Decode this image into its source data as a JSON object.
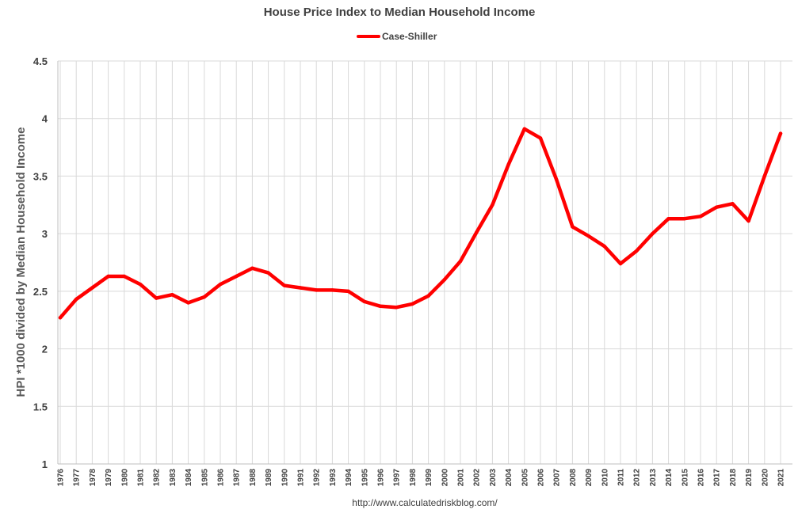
{
  "chart_data": {
    "type": "line",
    "title": "House Price Index to Median Household Income",
    "xlabel": "",
    "ylabel": "HPI *1000 divided by Median Household Income",
    "ylim": [
      1,
      4.5
    ],
    "yticks": [
      "1",
      "1.5",
      "2",
      "2.5",
      "3",
      "3.5",
      "4",
      "4.5"
    ],
    "ytick_values": [
      1,
      1.5,
      2,
      2.5,
      3,
      3.5,
      4,
      4.5
    ],
    "categories": [
      "1976",
      "1977",
      "1978",
      "1979",
      "1980",
      "1981",
      "1982",
      "1983",
      "1984",
      "1985",
      "1986",
      "1987",
      "1988",
      "1989",
      "1990",
      "1991",
      "1992",
      "1993",
      "1994",
      "1995",
      "1996",
      "1997",
      "1998",
      "1999",
      "2000",
      "2001",
      "2002",
      "2003",
      "2004",
      "2005",
      "2006",
      "2007",
      "2008",
      "2009",
      "2010",
      "2011",
      "2012",
      "2013",
      "2014",
      "2015",
      "2016",
      "2017",
      "2018",
      "2019",
      "2020",
      "2021"
    ],
    "series": [
      {
        "name": "Case-Shiller",
        "color": "#ff0000",
        "values": [
          2.27,
          2.43,
          2.53,
          2.63,
          2.63,
          2.56,
          2.44,
          2.47,
          2.4,
          2.45,
          2.56,
          2.63,
          2.7,
          2.66,
          2.55,
          2.53,
          2.51,
          2.51,
          2.5,
          2.41,
          2.37,
          2.36,
          2.39,
          2.46,
          2.6,
          2.76,
          3.01,
          3.25,
          3.6,
          3.91,
          3.83,
          3.47,
          3.06,
          2.98,
          2.89,
          2.74,
          2.85,
          3.0,
          3.13,
          3.13,
          3.15,
          3.23,
          3.26,
          3.11,
          3.5,
          3.87
        ]
      }
    ],
    "grid": true,
    "legend": "top-center",
    "source": "http://www.calculatedriskblog.com/"
  }
}
